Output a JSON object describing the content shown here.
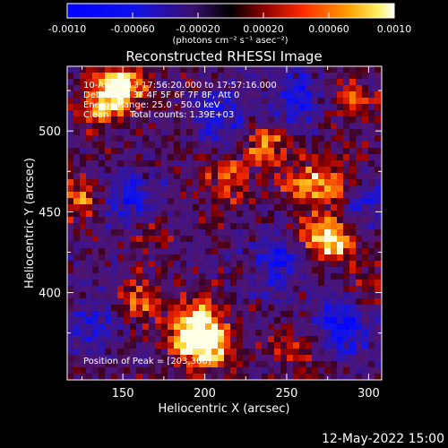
{
  "colorbar": {
    "ticks": [
      "-0.0010",
      "-0.00060",
      "-0.00020",
      "0.00020",
      "0.00060",
      "0.0010"
    ],
    "units": "(photons cm⁻² s⁻¹ asec⁻²)",
    "range": [
      -0.001,
      0.001
    ]
  },
  "chart_data": {
    "type": "heatmap",
    "title": "Reconstructed RHESSI Image",
    "xlabel": "Heliocentric X (arcsec)",
    "ylabel": "Heliocentric Y (arcsec)",
    "xlim": [
      116,
      308
    ],
    "ylim": [
      346,
      540
    ],
    "xticks": [
      "150",
      "200",
      "250",
      "300"
    ],
    "xtick_values": [
      150,
      200,
      250,
      300
    ],
    "yticks": [
      "400",
      "450",
      "500"
    ],
    "ytick_values": [
      400,
      450,
      500
    ],
    "annotations": [
      "10-Apr-2013 17:56:20.000 to 17:57:16.000",
      "Detectors: 3F 4F 5F 6F 7F 8F, Att 0",
      "Energy Range: 25.0 - 50.0 keV",
      "Clean",
      "Total counts: 1.39E+03"
    ],
    "peak_label": "Position of Peak = [203,366]",
    "peak_position": [
      203,
      366
    ],
    "bright_regions": [
      {
        "x": 150,
        "y": 528,
        "level": 0.95
      },
      {
        "x": 138,
        "y": 518,
        "level": 0.8
      },
      {
        "x": 203,
        "y": 366,
        "level": 1.0
      },
      {
        "x": 198,
        "y": 385,
        "level": 0.85
      },
      {
        "x": 188,
        "y": 372,
        "level": 0.75
      },
      {
        "x": 160,
        "y": 395,
        "level": 0.55
      },
      {
        "x": 280,
        "y": 432,
        "level": 0.9
      },
      {
        "x": 265,
        "y": 436,
        "level": 0.6
      },
      {
        "x": 238,
        "y": 490,
        "level": 0.65
      },
      {
        "x": 262,
        "y": 467,
        "level": 0.7
      },
      {
        "x": 280,
        "y": 468,
        "level": 0.5
      },
      {
        "x": 215,
        "y": 470,
        "level": 0.55
      },
      {
        "x": 125,
        "y": 458,
        "level": 0.6
      },
      {
        "x": 290,
        "y": 518,
        "level": 0.45
      },
      {
        "x": 255,
        "y": 365,
        "level": 0.4
      },
      {
        "x": 165,
        "y": 440,
        "level": 0.4
      },
      {
        "x": 300,
        "y": 400,
        "level": 0.35
      }
    ],
    "dark_regions": [
      {
        "x": 155,
        "y": 455,
        "level": -0.7
      },
      {
        "x": 245,
        "y": 420,
        "level": -0.6
      },
      {
        "x": 285,
        "y": 380,
        "level": -0.8
      },
      {
        "x": 210,
        "y": 510,
        "level": -0.5
      },
      {
        "x": 255,
        "y": 520,
        "level": -0.55
      },
      {
        "x": 130,
        "y": 380,
        "level": -0.5
      },
      {
        "x": 300,
        "y": 455,
        "level": -0.4
      }
    ]
  },
  "footer": {
    "date": "12-May-2022 15:00"
  }
}
